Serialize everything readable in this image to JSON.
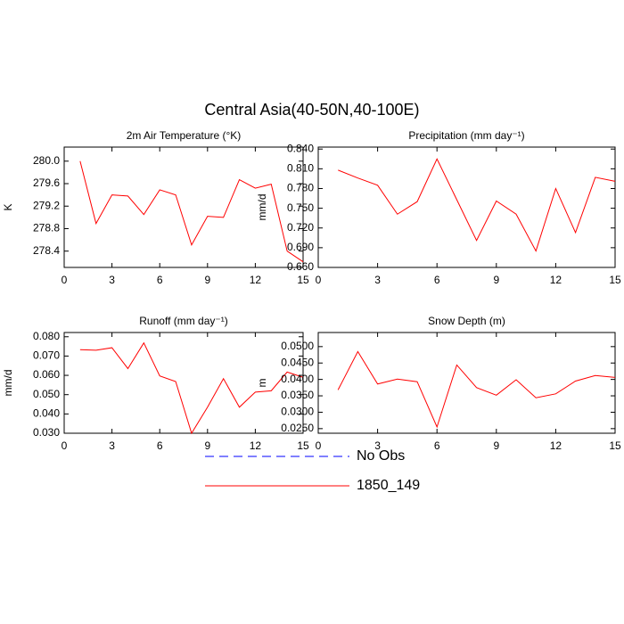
{
  "title": "Central Asia(40-50N,40-100E)",
  "legend": [
    {
      "name": "No Obs",
      "color": "#0000ff",
      "dashed": true
    },
    {
      "name": "1850_149",
      "color": "#ff0000",
      "dashed": false
    }
  ],
  "chart_data": [
    {
      "type": "line",
      "title": "2m Air Temperature (°K)",
      "y_label": "K",
      "color": "#ff0000",
      "x": [
        1,
        2,
        3,
        4,
        5,
        6,
        7,
        8,
        9,
        10,
        11,
        12,
        13,
        14,
        15
      ],
      "values": [
        280.0,
        278.89,
        279.4,
        279.38,
        279.05,
        279.49,
        279.4,
        278.51,
        279.02,
        279.0,
        279.67,
        279.52,
        279.59,
        278.4,
        278.21
      ],
      "xlim": [
        0,
        15
      ],
      "xticks": [
        0,
        3,
        6,
        9,
        12,
        15
      ],
      "ylim": [
        278.11,
        280.25
      ],
      "yticks": [
        {
          "value": 278.4,
          "label": "278.4"
        },
        {
          "value": 278.8,
          "label": "278.8"
        },
        {
          "value": 279.2,
          "label": "279.2"
        },
        {
          "value": 279.6,
          "label": "279.6"
        },
        {
          "value": 280,
          "label": "280.0"
        }
      ]
    },
    {
      "type": "line",
      "title": "Precipitation (mm day⁻¹)",
      "y_label": "mm/d",
      "color": "#ff0000",
      "x": [
        1,
        2,
        3,
        4,
        5,
        6,
        7,
        8,
        9,
        10,
        11,
        12,
        13,
        14,
        15
      ],
      "values": [
        0.808,
        0.796,
        0.785,
        0.741,
        0.76,
        0.825,
        0.763,
        0.701,
        0.761,
        0.741,
        0.685,
        0.78,
        0.713,
        0.797,
        0.791
      ],
      "xlim": [
        0,
        15
      ],
      "xticks": [
        0,
        3,
        6,
        9,
        12,
        15
      ],
      "ylim": [
        0.66,
        0.843
      ],
      "yticks": [
        {
          "value": 0.66,
          "label": "0.660"
        },
        {
          "value": 0.69,
          "label": "0.690"
        },
        {
          "value": 0.72,
          "label": "0.720"
        },
        {
          "value": 0.75,
          "label": "0.750"
        },
        {
          "value": 0.78,
          "label": "0.780"
        },
        {
          "value": 0.81,
          "label": "0.810"
        },
        {
          "value": 0.84,
          "label": "0.840"
        }
      ]
    },
    {
      "type": "line",
      "title": "Runoff (mm day⁻¹)",
      "y_label": "mm/d",
      "color": "#ff0000",
      "x": [
        1,
        2,
        3,
        4,
        5,
        6,
        7,
        8,
        9,
        10,
        11,
        12,
        13,
        14,
        15
      ],
      "values": [
        0.0733,
        0.073,
        0.0743,
        0.0635,
        0.0768,
        0.0597,
        0.0568,
        0.03,
        0.0435,
        0.0583,
        0.0435,
        0.0513,
        0.052,
        0.0617,
        0.059
      ],
      "xlim": [
        0,
        15
      ],
      "xticks": [
        0,
        3,
        6,
        9,
        12,
        15
      ],
      "ylim": [
        0.03,
        0.0822
      ],
      "yticks": [
        {
          "value": 0.03,
          "label": "0.030"
        },
        {
          "value": 0.04,
          "label": "0.040"
        },
        {
          "value": 0.05,
          "label": "0.050"
        },
        {
          "value": 0.06,
          "label": "0.060"
        },
        {
          "value": 0.07,
          "label": "0.070"
        },
        {
          "value": 0.08,
          "label": "0.080"
        }
      ]
    },
    {
      "type": "line",
      "title": "Snow Depth (m)",
      "y_label": "m",
      "color": "#ff0000",
      "x": [
        1,
        2,
        3,
        4,
        5,
        6,
        7,
        8,
        9,
        10,
        11,
        12,
        13,
        14,
        15
      ],
      "values": [
        0.0368,
        0.0485,
        0.0386,
        0.0401,
        0.0393,
        0.0255,
        0.0444,
        0.0375,
        0.0352,
        0.0399,
        0.0344,
        0.0356,
        0.0395,
        0.0412,
        0.0406
      ],
      "xlim": [
        0,
        15
      ],
      "xticks": [
        0,
        3,
        6,
        9,
        12,
        15
      ],
      "ylim": [
        0.0236,
        0.0543
      ],
      "yticks": [
        {
          "value": 0.025,
          "label": "0.0250"
        },
        {
          "value": 0.03,
          "label": "0.0300"
        },
        {
          "value": 0.035,
          "label": "0.0350"
        },
        {
          "value": 0.04,
          "label": "0.0400"
        },
        {
          "value": 0.045,
          "label": "0.0450"
        },
        {
          "value": 0.05,
          "label": "0.0500"
        }
      ]
    }
  ]
}
